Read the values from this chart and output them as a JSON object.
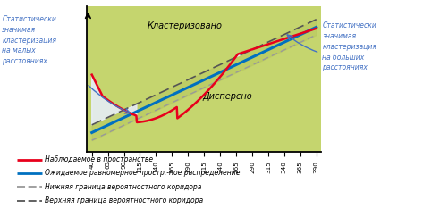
{
  "bg_color": "#c5d56e",
  "xticks": [
    40,
    65,
    90,
    115,
    140,
    165,
    190,
    215,
    240,
    265,
    290,
    315,
    340,
    365,
    390
  ],
  "xmin": 40,
  "xmax": 390,
  "text_clustered": "Кластеризовано",
  "text_dispersed": "Дисперсно",
  "left_annotation": "Статистически\nзначимая\nкластеризация\nна малых\nрасстояниях",
  "right_annotation": "Статистически\nзначимая\nкластеризация\nна больших\nрасстояниях",
  "legend1": "Наблюдаемое в пространстве",
  "legend2": "Ожидаемое равномерное простр.-ное распределение",
  "legend3": "Нижняя граница вероятностного коридора",
  "legend4": "Верхняя граница вероятностного коридора",
  "red_color": "#e8001c",
  "blue_color": "#0070c0",
  "lower_dash_color": "#999999",
  "upper_dash_color": "#555555",
  "annotation_color": "#4472c4",
  "white_fill": "#e8eeff"
}
